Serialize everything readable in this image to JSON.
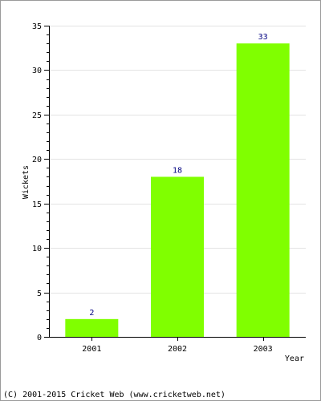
{
  "chart_data": {
    "type": "bar",
    "title": "",
    "xlabel": "Year",
    "ylabel": "Wickets",
    "categories": [
      "2001",
      "2002",
      "2003"
    ],
    "values": [
      2,
      18,
      33
    ],
    "data_labels": [
      "2",
      "18",
      "33"
    ],
    "yticks": [
      "0",
      "5",
      "10",
      "15",
      "20",
      "25",
      "30",
      "35"
    ],
    "ylim": [
      0,
      35
    ],
    "grid": true,
    "bar_color": "#80ff00",
    "label_color": "#000080",
    "background": "#ffffff"
  },
  "footer": {
    "copyright": "(C) 2001-2015 Cricket Web (www.cricketweb.net)"
  }
}
